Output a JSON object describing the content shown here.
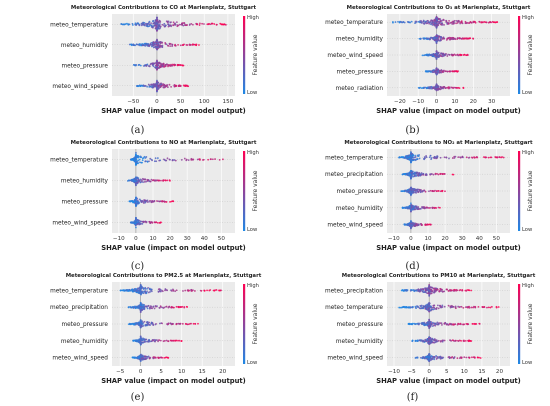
{
  "figure": {
    "colors": {
      "high": "#ff0052",
      "low": "#1e88e5",
      "grid": "#cccccc",
      "bg": "#ebebeb"
    },
    "colorbar": {
      "high": "High",
      "low": "Low",
      "label": "Feature value"
    },
    "xlabel": "SHAP value (impact on model output)"
  },
  "chart_data": [
    {
      "type": "scatter",
      "subtype": "shap-beeswarm",
      "caption": "(a)",
      "title": "Meteorological Contributions to CO at Marienplatz, Stuttgart",
      "xlabel": "SHAP value (impact on model output)",
      "xlim": [
        -95,
        165
      ],
      "xticks": [
        -50,
        0,
        50,
        100,
        150
      ],
      "features": [
        {
          "name": "meteo_temperature",
          "min": -80,
          "max": 150,
          "width": 1.0
        },
        {
          "name": "meteo_humidity",
          "min": -60,
          "max": 90,
          "width": 0.6
        },
        {
          "name": "meteo_pressure",
          "min": -50,
          "max": 60,
          "width": 0.45
        },
        {
          "name": "meteo_wind_speed",
          "min": -45,
          "max": 70,
          "width": 0.5
        }
      ]
    },
    {
      "type": "scatter",
      "subtype": "shap-beeswarm",
      "caption": "(b)",
      "title": "Meteorological Contributions to O₃ at Marienplatz, Stuttgart",
      "xlabel": "SHAP value (impact on model output)",
      "xlim": [
        -27,
        40
      ],
      "xticks": [
        -20,
        -10,
        0,
        10,
        20,
        30
      ],
      "features": [
        {
          "name": "meteo_temperature",
          "min": -24,
          "max": 35,
          "width": 1.0
        },
        {
          "name": "meteo_humidity",
          "min": -10,
          "max": 20,
          "width": 0.55
        },
        {
          "name": "meteo_wind_speed",
          "min": -8,
          "max": 18,
          "width": 0.45
        },
        {
          "name": "meteo_pressure",
          "min": -6,
          "max": 12,
          "width": 0.35
        },
        {
          "name": "meteo_radiation",
          "min": -10,
          "max": 15,
          "width": 0.3
        }
      ]
    },
    {
      "type": "scatter",
      "subtype": "shap-beeswarm",
      "caption": "(c)",
      "title": "Meteorological Contributions to NO at Marienplatz, Stuttgart",
      "xlabel": "SHAP value (impact on model output)",
      "xlim": [
        -14,
        58
      ],
      "xticks": [
        -10,
        0,
        10,
        20,
        30,
        40,
        50
      ],
      "features": [
        {
          "name": "meteo_temperature",
          "min": -3,
          "max": 55,
          "width": 0.6
        },
        {
          "name": "meteo_humidity",
          "min": -5,
          "max": 20,
          "width": 0.3
        },
        {
          "name": "meteo_pressure",
          "min": -4,
          "max": 22,
          "width": 0.3
        },
        {
          "name": "meteo_wind_speed",
          "min": -3,
          "max": 15,
          "width": 0.3
        }
      ]
    },
    {
      "type": "scatter",
      "subtype": "shap-beeswarm",
      "caption": "(d)",
      "title": "Meteorological Contributions to NO₂ at Marienplatz, Stuttgart",
      "xlabel": "SHAP value (impact on model output)",
      "xlim": [
        -14,
        58
      ],
      "xticks": [
        -10,
        0,
        10,
        20,
        30,
        40,
        50
      ],
      "features": [
        {
          "name": "meteo_temperature",
          "min": -8,
          "max": 55,
          "width": 0.7
        },
        {
          "name": "meteo_precipitation",
          "min": -5,
          "max": 25,
          "width": 0.55
        },
        {
          "name": "meteo_pressure",
          "min": -6,
          "max": 20,
          "width": 0.5
        },
        {
          "name": "meteo_humidity",
          "min": -5,
          "max": 18,
          "width": 0.45
        },
        {
          "name": "meteo_wind_speed",
          "min": -4,
          "max": 12,
          "width": 0.35
        }
      ]
    },
    {
      "type": "scatter",
      "subtype": "shap-beeswarm",
      "caption": "(e)",
      "title": "Meteorological Contributions to PM2.5 at Marienplatz, Stuttgart",
      "xlabel": "SHAP value (impact on model output)",
      "xlim": [
        -7,
        23
      ],
      "xticks": [
        -5,
        0,
        5,
        10,
        15,
        20
      ],
      "features": [
        {
          "name": "meteo_temperature",
          "min": -5,
          "max": 20,
          "width": 0.8
        },
        {
          "name": "meteo_precipitation",
          "min": -3,
          "max": 12,
          "width": 0.55
        },
        {
          "name": "meteo_pressure",
          "min": -3,
          "max": 14,
          "width": 0.5
        },
        {
          "name": "meteo_humidity",
          "min": -2,
          "max": 10,
          "width": 0.4
        },
        {
          "name": "meteo_wind_speed",
          "min": -2,
          "max": 7,
          "width": 0.35
        }
      ]
    },
    {
      "type": "scatter",
      "subtype": "shap-beeswarm",
      "caption": "(f)",
      "title": "Meteorological Contributions to PM10 at Marienplatz, Stuttgart",
      "xlabel": "SHAP value (impact on model output)",
      "xlim": [
        -12,
        23
      ],
      "xticks": [
        -10,
        -5,
        0,
        5,
        10,
        15,
        20
      ],
      "features": [
        {
          "name": "meteo_precipitation",
          "min": -8,
          "max": 12,
          "width": 0.8
        },
        {
          "name": "meteo_temperature",
          "min": -9,
          "max": 20,
          "width": 0.7
        },
        {
          "name": "meteo_pressure",
          "min": -6,
          "max": 15,
          "width": 0.5
        },
        {
          "name": "meteo_humidity",
          "min": -5,
          "max": 12,
          "width": 0.45
        },
        {
          "name": "meteo_wind_speed",
          "min": -4,
          "max": 15,
          "width": 0.4
        }
      ]
    }
  ]
}
